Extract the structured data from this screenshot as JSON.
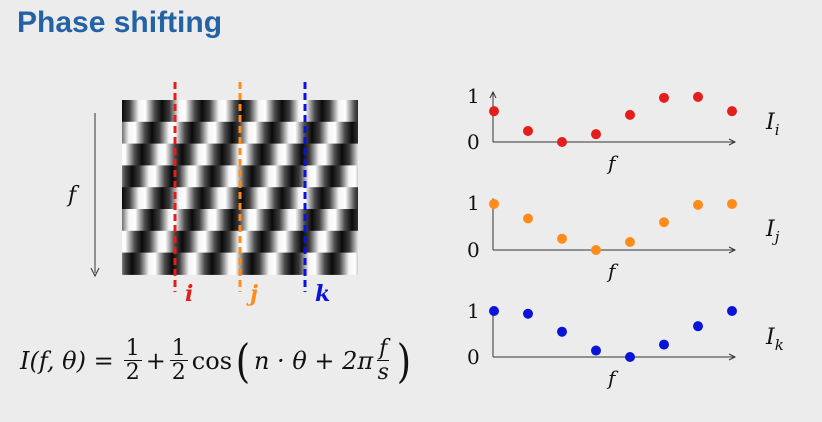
{
  "title": "Phase shifting",
  "pattern": {
    "axis_label": "f",
    "columns": [
      {
        "label": "i",
        "color": "#e41d1d"
      },
      {
        "label": "j",
        "color": "#ff8c1a"
      },
      {
        "label": "k",
        "color": "#0a14d6"
      }
    ]
  },
  "formula": {
    "lhs": "I(f, θ) =",
    "half_num": "1",
    "half_den": "2",
    "plus": "+",
    "cos": "cos",
    "arg1": "n · θ + 2π",
    "frac_num": "f",
    "frac_den": "s"
  },
  "chart_data": [
    {
      "type": "scatter",
      "series": [
        {
          "name": "I_i",
          "color": "#e41d1d",
          "values": [
            0.67,
            0.24,
            0.0,
            0.17,
            0.59,
            0.96,
            0.98,
            0.67
          ]
        }
      ],
      "x": [
        0,
        1,
        2,
        3,
        4,
        5,
        6,
        7
      ],
      "xlabel": "f",
      "ylabel": "",
      "ylim": [
        0,
        1
      ],
      "ytick_labels": [
        "0",
        "1"
      ],
      "label_main": "I",
      "label_sub": "i"
    },
    {
      "type": "scatter",
      "series": [
        {
          "name": "I_j",
          "color": "#ff8c1a",
          "values": [
            0.98,
            0.67,
            0.24,
            0.0,
            0.17,
            0.59,
            0.96,
            0.98
          ]
        }
      ],
      "x": [
        0,
        1,
        2,
        3,
        4,
        5,
        6,
        7
      ],
      "xlabel": "f",
      "ylabel": "",
      "ylim": [
        0,
        1
      ],
      "ytick_labels": [
        "0",
        "1"
      ],
      "label_main": "I",
      "label_sub": "j"
    },
    {
      "type": "scatter",
      "series": [
        {
          "name": "I_k",
          "color": "#0a14d6",
          "values": [
            1.0,
            0.94,
            0.55,
            0.14,
            0.0,
            0.27,
            0.67,
            1.0
          ]
        }
      ],
      "x": [
        0,
        1,
        2,
        3,
        4,
        5,
        6,
        7
      ],
      "xlabel": "f",
      "ylabel": "",
      "ylim": [
        0,
        1
      ],
      "ytick_labels": [
        "0",
        "1"
      ],
      "label_main": "I",
      "label_sub": "k"
    }
  ]
}
